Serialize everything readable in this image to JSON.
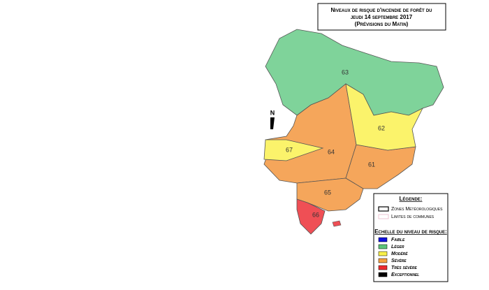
{
  "header": {
    "title_lines": [
      "Niveaux de risque d'incendie de forêt du",
      "jeudi 14 septembre 2017",
      "(Prévisions du Matin)"
    ]
  },
  "north": "N",
  "zones": [
    {
      "label": "64",
      "color": "#f5a65b"
    },
    {
      "label": "61",
      "color": "#f5a65b"
    },
    {
      "label": "65",
      "color": "#f5a65b"
    },
    {
      "label": "63",
      "color": "#7fd39a"
    },
    {
      "label": "62",
      "color": "#fbf36b"
    },
    {
      "label": "67",
      "color": "#fbf36b"
    },
    {
      "label": "66",
      "color": "#ef4f55"
    }
  ],
  "legend": {
    "title": "Légende:",
    "items": [
      "Zones Météorologiques",
      "Limites de communes"
    ]
  },
  "scale": {
    "title": "Echelle du niveau de risque:",
    "levels": [
      {
        "name": "Faible",
        "color": "#1010e0"
      },
      {
        "name": "Léger",
        "color": "#5cc47a"
      },
      {
        "name": "Modéré",
        "color": "#f8f04a"
      },
      {
        "name": "Sévère",
        "color": "#f5a040"
      },
      {
        "name": "Très sévère",
        "color": "#ee2a30"
      },
      {
        "name": "Exceptionnel",
        "color": "#000000"
      }
    ]
  }
}
